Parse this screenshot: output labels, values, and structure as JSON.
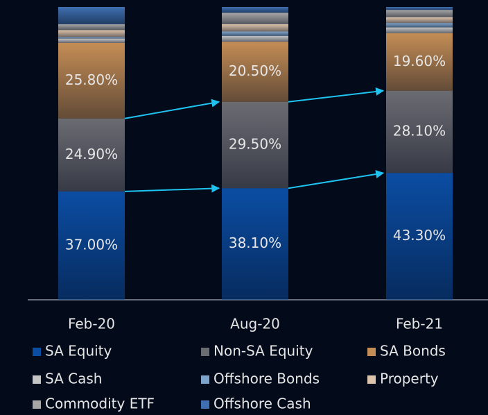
{
  "chart_data": {
    "type": "stacked_bar",
    "categories": [
      "Feb-20",
      "Aug-20",
      "Feb-21"
    ],
    "ylim": [
      0,
      100
    ],
    "series": [
      {
        "name": "SA Equity",
        "color": "#0b4da3",
        "values": [
          37.0,
          38.1,
          43.3
        ],
        "value_labels": [
          "37.00%",
          "38.10%",
          "43.30%"
        ]
      },
      {
        "name": "Non-SA Equity",
        "color": "#6b6b72",
        "values": [
          24.9,
          29.5,
          28.1
        ],
        "value_labels": [
          "24.90%",
          "29.50%",
          "28.10%"
        ]
      },
      {
        "name": "SA Bonds",
        "color": "#c48d55",
        "values": [
          25.8,
          20.5,
          19.6
        ],
        "value_labels": [
          "25.80%",
          "20.50%",
          "19.60%"
        ]
      },
      {
        "name": "SA Cash",
        "color": "#c4c4c4",
        "values": [
          1.5,
          2.0,
          2.0
        ]
      },
      {
        "name": "Offshore Bonds",
        "color": "#7ea4cc",
        "values": [
          0.5,
          1.5,
          1.5
        ]
      },
      {
        "name": "Property",
        "color": "#dcc3ab",
        "values": [
          2.4,
          2.5,
          2.0
        ]
      },
      {
        "name": "Commodity ETF",
        "color": "#a6a6a6",
        "values": [
          2.0,
          3.9,
          2.5
        ]
      },
      {
        "name": "Offshore Cash",
        "color": "#3f6fb0",
        "values": [
          5.9,
          2.0,
          1.0
        ]
      }
    ]
  }
}
